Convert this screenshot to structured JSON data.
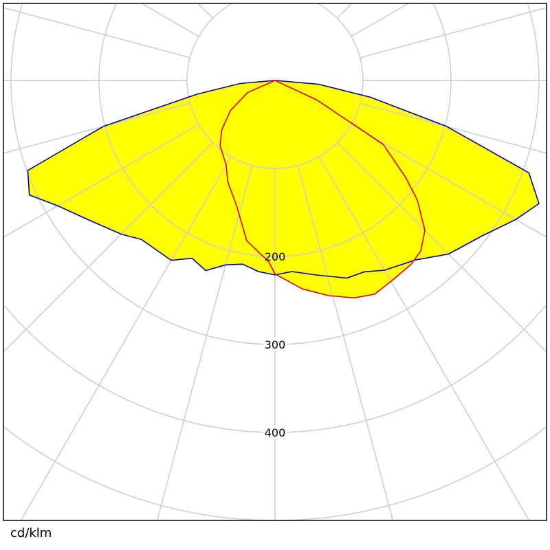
{
  "chart_data": {
    "type": "polar",
    "title": "",
    "unit_label": "cd/klm",
    "radial_ticks": [
      100,
      200,
      300,
      400,
      500
    ],
    "radial_tick_labels": [
      "200",
      "300",
      "400"
    ],
    "angle_step_deg": 15,
    "grid": true,
    "angle_convention": "degrees from nadir (0 = straight down), positive to the right",
    "colors": {
      "fill": "#ffff00",
      "grid": "#cccccc",
      "frame": "#000000"
    },
    "series": [
      {
        "color": "#0000b0",
        "points": [
          [
            -90,
            0
          ],
          [
            -85,
            40
          ],
          [
            -80,
            90
          ],
          [
            -75,
            202
          ],
          [
            -70,
            299
          ],
          [
            -65,
            308
          ],
          [
            -60,
            285
          ],
          [
            -53,
            264
          ],
          [
            -45,
            247
          ],
          [
            -40,
            236
          ],
          [
            -30,
            236
          ],
          [
            -25,
            223
          ],
          [
            -20,
            230
          ],
          [
            -15,
            217
          ],
          [
            -10,
            212
          ],
          [
            -5,
            218
          ],
          [
            0,
            221
          ],
          [
            5,
            218
          ],
          [
            12,
            226
          ],
          [
            20,
            239
          ],
          [
            25,
            240
          ],
          [
            30,
            249
          ],
          [
            38,
            259
          ],
          [
            45,
            279
          ],
          [
            53,
            294
          ],
          [
            60,
            316
          ],
          [
            65,
            331
          ],
          [
            70,
            307
          ],
          [
            75,
            202
          ],
          [
            80,
            110
          ],
          [
            85,
            50
          ],
          [
            90,
            0
          ]
        ]
      },
      {
        "color": "#e00000",
        "points": [
          [
            0,
            0
          ],
          [
            -66,
            34
          ],
          [
            -56,
            61
          ],
          [
            -47,
            83
          ],
          [
            -40,
            97
          ],
          [
            -30,
            111
          ],
          [
            -25,
            127
          ],
          [
            -17,
            149
          ],
          [
            -10,
            185
          ],
          [
            -2,
            206
          ],
          [
            0,
            220
          ],
          [
            7.5,
            239
          ],
          [
            14,
            252
          ],
          [
            20,
            263
          ],
          [
            25,
            268
          ],
          [
            31,
            263
          ],
          [
            36.5,
            260
          ],
          [
            40.5,
            255
          ],
          [
            45,
            241
          ],
          [
            50,
            211
          ],
          [
            53.4,
            185
          ],
          [
            59.4,
            143
          ],
          [
            60.5,
            108
          ],
          [
            65,
            52
          ],
          [
            0,
            0
          ]
        ]
      }
    ]
  }
}
